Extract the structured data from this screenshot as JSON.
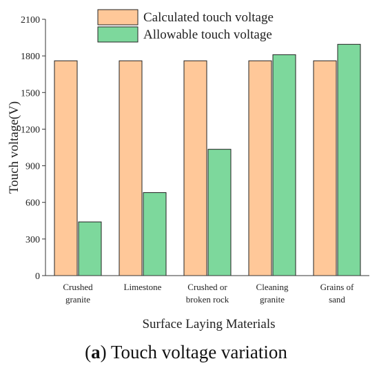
{
  "caption": {
    "prefix": "(",
    "letter": "a",
    "suffix": ") Touch voltage variation"
  },
  "chart_data": {
    "type": "bar",
    "categories": [
      [
        "Crushed",
        "granite"
      ],
      [
        "Limestone"
      ],
      [
        "Crushed or",
        "broken rock"
      ],
      [
        "Cleaning",
        "granite"
      ],
      [
        "Grains of",
        "sand"
      ]
    ],
    "series": [
      {
        "name": "Calculated touch voltage",
        "values": [
          1760,
          1760,
          1760,
          1760,
          1760
        ],
        "color": "#FFC899"
      },
      {
        "name": "Allowable touch voltage",
        "values": [
          440,
          680,
          1035,
          1810,
          1895
        ],
        "color": "#7DD89C"
      }
    ],
    "title": "",
    "xlabel": "Surface Laying Materials",
    "ylabel": "Touch voltage(V)",
    "ylim": [
      0,
      2100
    ],
    "yticks": [
      0,
      300,
      600,
      900,
      1200,
      1500,
      1800,
      2100
    ],
    "grid": false,
    "legend_position": "top-center"
  }
}
